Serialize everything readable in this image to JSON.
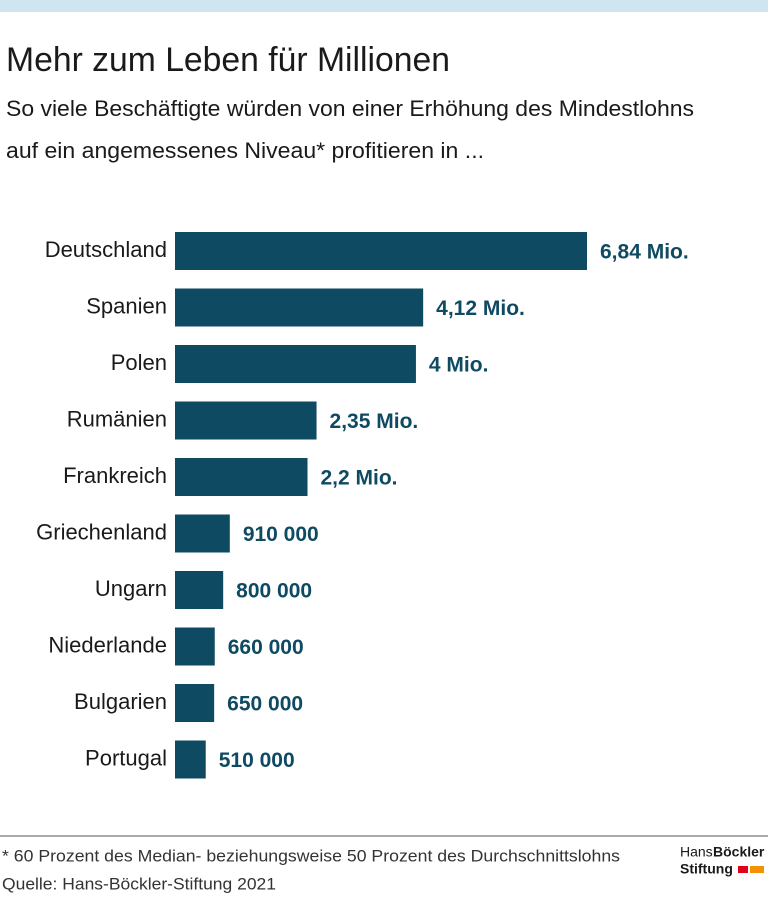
{
  "chart_data": {
    "type": "bar",
    "orientation": "horizontal",
    "title": "Mehr zum Leben für Millionen",
    "subtitle": [
      "So viele Beschäftigte würden von einer Erhöhung des Mindestlohns",
      "auf ein angemessenes Niveau* profitieren in ..."
    ],
    "categories": [
      "Deutschland",
      "Spanien",
      "Polen",
      "Rumänien",
      "Frankreich",
      "Griechenland",
      "Ungarn",
      "Niederlande",
      "Bulgarien",
      "Portugal"
    ],
    "values": [
      6840000,
      4120000,
      4000000,
      2350000,
      2200000,
      910000,
      800000,
      660000,
      650000,
      510000
    ],
    "value_labels": [
      "6,84 Mio.",
      "4,12 Mio.",
      "4 Mio.",
      "2,35 Mio.",
      "2,2 Mio.",
      "910 000",
      "800 000",
      "660 000",
      "650 000",
      "510 000"
    ],
    "color": "#0f4a63"
  },
  "footnote": "* 60 Prozent des Median- beziehungsweise 50 Prozent des Durchschnittslohns",
  "source": "Quelle: Hans-Böckler-Stiftung 2021",
  "logo": {
    "line1": "Hans",
    "line1_bold": "Böckler",
    "line2": "Stiftung"
  }
}
